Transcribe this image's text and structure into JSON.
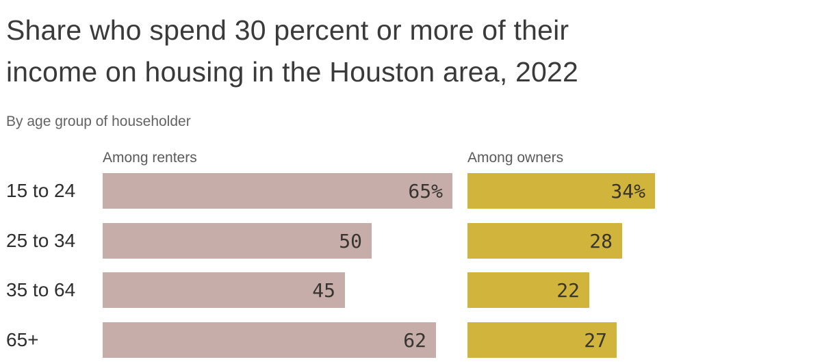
{
  "header": {
    "title_line1": "Share who spend 30 percent or more of their",
    "title_line2": "income on housing in the Houston area, 2022",
    "subtitle": "By age group of householder"
  },
  "chart_data": {
    "type": "bar",
    "orientation": "horizontal",
    "title": "Share who spend 30 percent or more of their income on housing in the Houston area, 2022",
    "subtitle": "By age group of householder",
    "categories": [
      "15 to 24",
      "25 to 34",
      "35 to 64",
      "65+"
    ],
    "series": [
      {
        "name": "Among renters",
        "values": [
          65,
          50,
          45,
          62
        ],
        "labels": [
          "65%",
          "50",
          "45",
          "62"
        ],
        "color": "#c6adaa"
      },
      {
        "name": "Among owners",
        "values": [
          34,
          28,
          22,
          27
        ],
        "labels": [
          "34%",
          "28",
          "22",
          "27"
        ],
        "color": "#d0b43c"
      }
    ],
    "value_unit": "percent",
    "xlim": [
      0,
      65
    ],
    "grid": false,
    "legend_position": "panel-headers-above-first-bar",
    "value_label_position": "inside-bar-right"
  },
  "colors": {
    "title_text": "#3a3a3a",
    "subtitle_text": "#636363",
    "panel_header_text": "#5a5a5a",
    "category_text": "#2e2e2e",
    "value_text": "#38342f",
    "renters_bar": "#c6adaa",
    "owners_bar": "#d0b43c",
    "background": "#ffffff"
  }
}
